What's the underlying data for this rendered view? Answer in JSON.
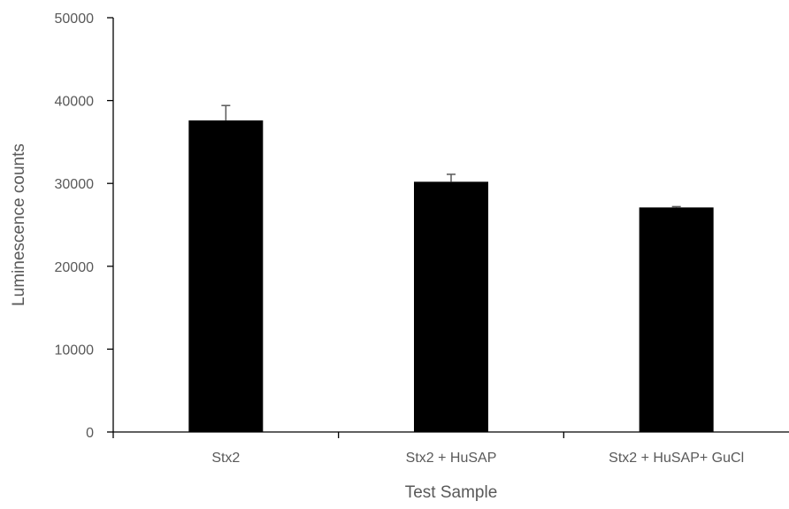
{
  "chart_data": {
    "type": "bar",
    "title": "",
    "xlabel": "Test Sample",
    "ylabel": "Luminescence counts",
    "categories": [
      "Stx2",
      "Stx2 + HuSAP",
      "Stx2 + HuSAP+ GuCl"
    ],
    "values": [
      37600,
      30200,
      27100
    ],
    "error_bars": [
      1800,
      900,
      100
    ],
    "ylim": [
      0,
      50000
    ],
    "yticks": [
      0,
      10000,
      20000,
      30000,
      40000,
      50000
    ],
    "ytick_labels": [
      "0",
      "10000",
      "20000",
      "30000",
      "40000",
      "50000"
    ],
    "grid": false,
    "legend": "none",
    "colors": {
      "bar": "#000000",
      "axis": "#000000",
      "text": "#595959",
      "error_bar": "#595959"
    }
  }
}
